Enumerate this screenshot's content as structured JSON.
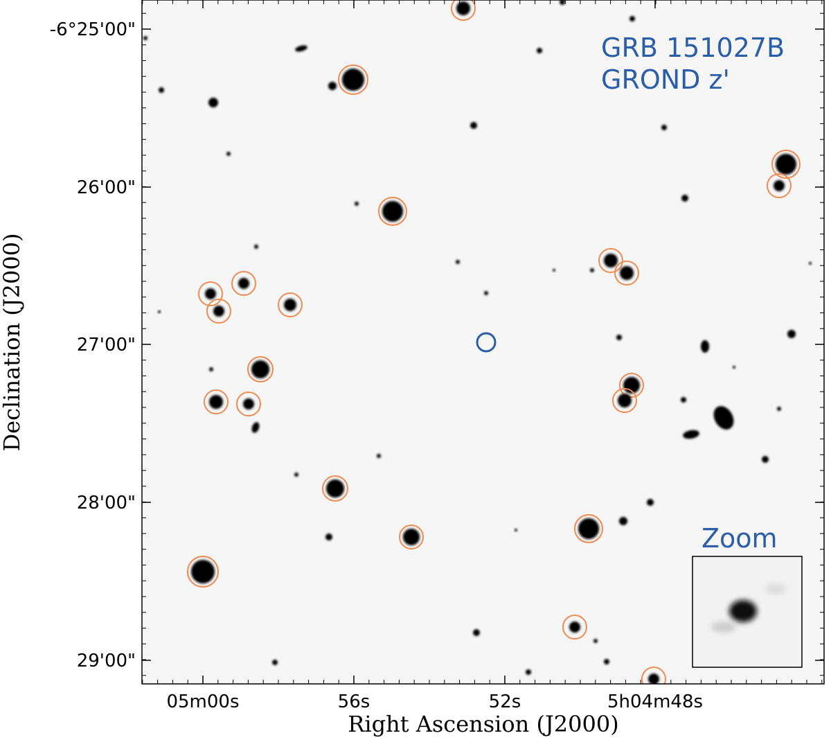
{
  "axes": {
    "x_label": "Right Ascension (J2000)",
    "y_label": "Declination (J2000)",
    "x_ticks": [
      "05m00s",
      "56s",
      "52s",
      "5h04m48s"
    ],
    "y_ticks": [
      "-6°25'00\"",
      "26'00\"",
      "27'00\"",
      "28'00\"",
      "29'00\""
    ]
  },
  "annotations": {
    "title_line1": "GRB 151027B",
    "title_line2": "GROND z'",
    "inset": "Zoom"
  }
}
